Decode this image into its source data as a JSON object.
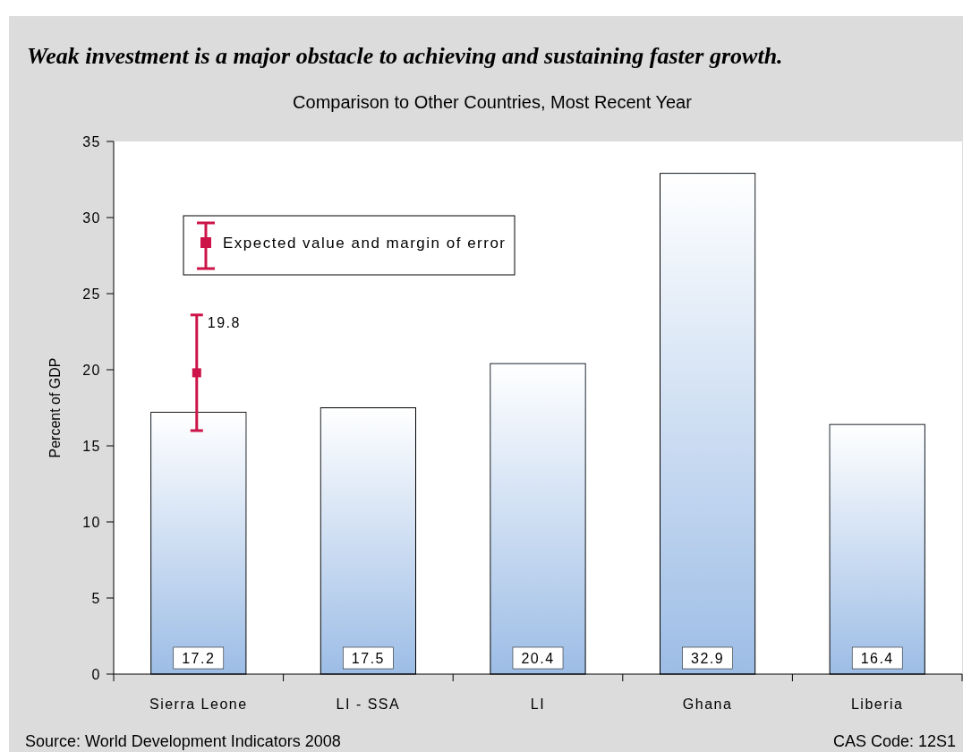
{
  "chart_data": {
    "type": "bar",
    "title": "Weak investment is a major obstacle to achieving and sustaining faster growth.",
    "subtitle": "Comparison to Other Countries, Most Recent Year",
    "ylabel": "Percent of GDP",
    "categories": [
      "Sierra Leone",
      "LI - SSA",
      "LI",
      "Ghana",
      "Liberia"
    ],
    "series": [
      {
        "color": "#9dbde6",
        "values": [
          17.2,
          17.5,
          20.4,
          32.9,
          16.4
        ]
      },
      {
        "type": "scatter",
        "name": "Expected value and margin of error",
        "color": "#cc1448",
        "values": [
          19.8,
          null,
          null,
          null,
          null
        ],
        "errors": [
          [
            16.0,
            23.6
          ],
          null,
          null,
          null,
          null
        ]
      }
    ],
    "ylim": [
      0,
      35
    ],
    "yticks": [
      0,
      5,
      10,
      15,
      20,
      25,
      30,
      35
    ],
    "grid": false,
    "legend": "top left",
    "marker": "square",
    "data_labels": true,
    "annotations": [
      "Source: World Development Indicators 2008",
      "CAS Code: 12S1"
    ]
  }
}
